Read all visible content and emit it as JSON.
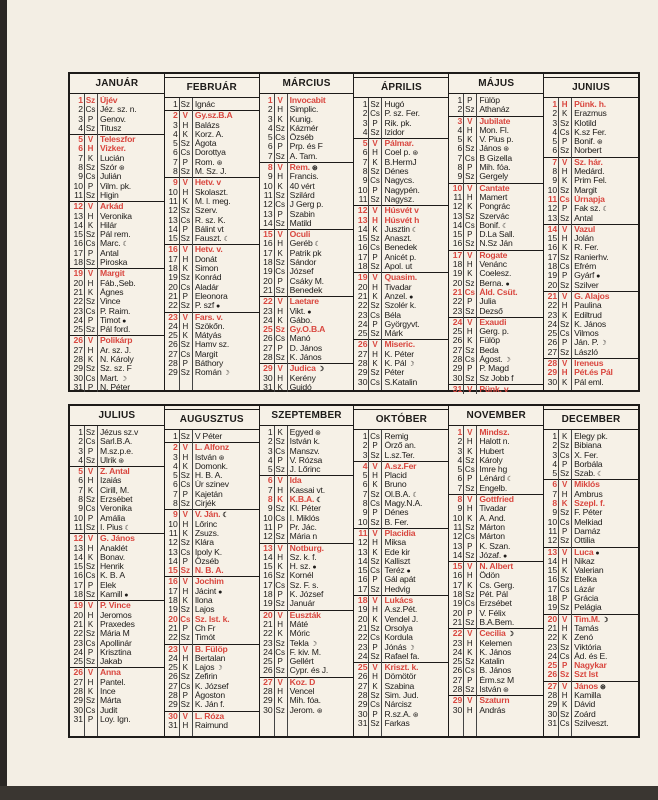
{
  "colors": {
    "holiday": "#d9473f",
    "ink": "#1d1b19",
    "paper": "#f6f1e7"
  },
  "moon_icons": {
    "f": "full-moon-face-icon",
    "n": "new-moon-icon",
    "l": "last-quarter-icon",
    "q": "first-quarter-icon"
  },
  "months": [
    {
      "name": "JANUÁR",
      "days": [
        "Sz|Újév|r",
        "Cs|Jéz. sz. n.",
        "P|Genov.",
        "Sz|Titusz",
        "V|Teleszfor|r",
        "H|Vizker.|r",
        "K|Lucián",
        "Sz|Szór|f",
        "Cs|Julián",
        "P|Vilm. pk.",
        "Sz|Higin",
        "V|Arkád|r",
        "H|Veronika",
        "K|Hilár",
        "Sz|Pál rem.",
        "Cs|Marc.|l",
        "P|Antal",
        "Sz|Piroska",
        "V|Margit|r",
        "H|Fáb.,Seb.",
        "K|Ágnes",
        "Sz|Vince",
        "Cs|P. Raim.",
        "P|Timot|n",
        "Sz|Pál ford.",
        "V|Polikárp|r",
        "H|Ar. sz. J.",
        "K|N. Károly",
        "Sz|Sz. sz. F",
        "Cs|Mart.|q",
        "P|N. Péter"
      ]
    },
    {
      "name": "FEBRUÁR",
      "days": [
        "Sz|Ignác",
        "V|Gy.sz.B.A|r",
        "H|Balázs",
        "K|Korz. A.",
        "Sz|Ágota",
        "Cs|Dorottya",
        "P|Rom.|f",
        "Sz|M. Sz. J.",
        "V|Hetv. v|r",
        "H|Skolaszt.",
        "K|M. l. meg.",
        "Sz|Szerv.",
        "Cs|R. sz. K.",
        "P|Bálint vt",
        "Sz|Fauszt.|l",
        "V|Hetv. v.|r",
        "H|Donát",
        "K|Simon",
        "Sz|Konrád",
        "Cs|Aladár",
        "P|Eleonora",
        "Sz|P. szf|n",
        "V|Fars. v.|r",
        "H|Szökőn.",
        "K|Mátyás",
        "Sz|Hamv sz.",
        "Cs|Margit",
        "P|Báthory",
        "Sz|Román|q"
      ]
    },
    {
      "name": "MÁRCIUS",
      "days": [
        "V|Invocabit|r",
        "H|Simplic.",
        "K|Kunig.",
        "Sz|Kázmér",
        "Cs|Özséb",
        "P|Prp. és F",
        "Sz|A. Tam.",
        "V|Rem.|rf",
        "H|Francis.",
        "K|40 vért",
        "Sz|Szilárd",
        "Cs|J Gerg p.",
        "P|Szabin",
        "Sz|Matild",
        "V|Oculi|r",
        "H|Geréb|l",
        "K|Patrik pk",
        "Sz|Sándor",
        "Cs|József",
        "P|Csáky M.",
        "Sz|Benedek",
        "V|Laetare|r",
        "H|Vikt.|n",
        "K|Gábo.",
        "Sz|Gy.O.B.A|r",
        "Cs|Manó",
        "P|D. János",
        "Sz|K. János",
        "V|Judica|rq",
        "H|Kerény",
        "K|Guidó"
      ]
    },
    {
      "name": "ÁPRILIS",
      "days": [
        "Sz|Hugó",
        "Cs|P. sz. Fer.",
        "P|Rik. pk.",
        "Sz|Izidor",
        "V|Pálmar.|r",
        "H|Coel p.|f",
        "K|B.HermJ",
        "Sz|Dénes",
        "Cs|Nagycs.",
        "P|Nagypén.",
        "Sz|Nagysz.",
        "V|Húsvét v|r",
        "H|Húsvét h|r",
        "K|Jusztin|l",
        "Sz|Anaszt.",
        "Cs|Benedek",
        "P|Anicét p.",
        "Sz|Apol. ut",
        "V|Quasim.|r",
        "H|Tivadar",
        "K|Anzel.|n",
        "Sz|Szolér k.",
        "Cs|Béla",
        "P|Györgyvt.",
        "Sz|Márk",
        "V|Miseric.|r",
        "H|K. Péter",
        "K|K. Pál|q",
        "Sz|Péter",
        "Cs|S.Katalin"
      ]
    },
    {
      "name": "MÁJUS",
      "days": [
        "P|Fülöp",
        "Sz|Athanáz",
        "V|Jubilate|r",
        "H|Mon. Fl.",
        "K|V. Pius p.",
        "Sz|János|f",
        "Cs|B Gizella",
        "P|Mih. fóa.",
        "Sz|Gergely",
        "V|Cantate|r",
        "H|Mamert",
        "K|Pongrác",
        "Sz|Szervác",
        "Cs|Bonif.|l",
        "P|D.La Sall.",
        "Sz|N.Sz Ján",
        "V|Rogate|r",
        "H|Venánc",
        "K|Coelesz.",
        "Sz|Berna.|n",
        "Cs|Áld. Csüt.|r",
        "P|Julia",
        "Sz|Dezső",
        "V|Exaudi|r",
        "H|Gerg. p.",
        "K|Fülöp",
        "Sz|Beda",
        "Cs|Ágost.|q",
        "P|P. Magd",
        "Sz|Sz Jobb f",
        "V|Pünk. v|r"
      ]
    },
    {
      "name": "JUNIUS",
      "days": [
        "H|Pünk. h.|r",
        "K|Erazmus",
        "Sz|Klotild",
        "Cs|K.sz Fer.",
        "P|Bonif.|f",
        "Sz|Norbert",
        "V|Sz. hár.|r",
        "H|Medárd.",
        "K|Prim Fel.",
        "Sz|Margit",
        "Cs|Úrnapja|r",
        "P|Fak sz.|l",
        "Sz|Antal",
        "V|Vazul|r",
        "H|Jolán",
        "K|R. Fer.",
        "Sz|Ranierhv.",
        "Cs|Efrém",
        "P|Gyárf|n",
        "Sz|Szilver",
        "V|G. Alajos|r",
        "H|Paulina",
        "K|Ediltrud",
        "Sz|K. János",
        "Cs|Vilmos",
        "P|Ján. P.|q",
        "Sz|László",
        "V|Ireneus|r",
        "H|Pét.és Pál|r",
        "K|Pál eml."
      ]
    },
    {
      "name": "JULIUS",
      "days": [
        "Sz|Jézus sz.v",
        "Cs|Sarl.B.A.",
        "P|M.sz.p.e.",
        "Sz|Ulrik|f",
        "V|Z. Antal|r",
        "H|Izaiás",
        "K|Cirill, M.",
        "Sz|Erzsébet",
        "Cs|Veronika",
        "P|Amália",
        "Sz|I. Pius|l",
        "V|G. János|r",
        "H|Anaklét",
        "K|Bonav.",
        "Sz|Henrik",
        "Cs|K. B. A",
        "P|Elek",
        "Sz|Kamill|n",
        "V|P. Vince|r",
        "H|Jeromos",
        "K|Praxedes",
        "Sz|Mária M",
        "Cs|Apollinár",
        "P|Krisztina",
        "Sz|Jakab",
        "V|Anna|r",
        "H|Pantel.",
        "K|Ince",
        "Sz|Márta",
        "Cs|Judit",
        "P|Loy. Ign."
      ]
    },
    {
      "name": "AUGUSZTUS",
      "days": [
        "Sz|V Péter",
        "V|L. Alfonz|r",
        "H|István|f",
        "K|Domonk.",
        "Sz|H. B. A.",
        "Cs|Úr szinev",
        "P|Kajetán",
        "Sz|Cirjék",
        "V|V. Ján.|rl",
        "H|Lőrinc",
        "K|Zsuzs.",
        "Sz|Klára",
        "Cs|Ipoly K.",
        "P|Özséb",
        "Sz|N. B. A.|r",
        "V|Jochim|r",
        "H|Jácint|n",
        "K|Ilona",
        "Sz|Lajos",
        "Cs|Sz. Ist. k.|r",
        "P|Ch Fr",
        "Sz|Timót",
        "V|B. Fülöp|r",
        "H|Bertalan",
        "K|Lajos|q",
        "Sz|Zefirin",
        "Cs|K. József",
        "P|Ágoston",
        "Sz|K. Ján f.",
        "V|L. Róza|r",
        "H|Raimund"
      ]
    },
    {
      "name": "SZEPTEMBER",
      "days": [
        "K|Egyed|f",
        "Sz|István k.",
        "Cs|Manszv.",
        "P|V. Rózsa",
        "Sz|J. Lőrinc",
        "V|Ida|r",
        "H|Kassai vt.",
        "K|K.B.A.|rl",
        "Sz|Kl. Péter",
        "Cs|I. Miklós",
        "P|Pr. Jác.",
        "Sz|Mária n",
        "V|Notburg.|r",
        "H|Sz. k. f.",
        "K|H. sz.|n",
        "Sz|Kornél",
        "Cs|Sz. F. s.",
        "P|K. József",
        "Sz|Január",
        "V|Euszták|r",
        "H|Máté",
        "K|Móric",
        "Sz|Tekla|q",
        "Cs|F. kiv. M.",
        "P|Gellért",
        "Sz|Cypr. és J.",
        "V|Koz. D|r",
        "H|Vencel",
        "K|Mih. fóa.",
        "Sz|Jerom.|f"
      ]
    },
    {
      "name": "OKTÓBER",
      "days": [
        "Cs|Remig",
        "P|Őrző an.",
        "Sz|L.sz.Ter.",
        "V|A.sz.Fer|r",
        "H|Placid",
        "K|Bruno",
        "Sz|Ol.B.A.|l",
        "Cs|Magy.N.A.",
        "P|Dénes",
        "Sz|B. Fer.",
        "V|Placidia|r",
        "H|Miksa",
        "K|Ede kir",
        "Sz|Kalliszt",
        "Cs|Teréz|n",
        "P|Gál apát",
        "Sz|Hedvig",
        "V|Lukács|r",
        "H|A.sz.Pét.",
        "K|Vendel J.",
        "Sz|Orsolya",
        "Cs|Kordula",
        "P|Jónás|q",
        "Sz|Rafael fa.",
        "V|Kriszt. k.|r",
        "H|Dömötör",
        "K|Szabina",
        "Sz|Sim. Jud.",
        "Cs|Nárcisz",
        "P|R.sz.A.|f",
        "Sz|Farkas"
      ]
    },
    {
      "name": "NOVEMBER",
      "days": [
        "V|Mindsz.|r",
        "H|Halott n.",
        "K|Hubert",
        "Sz|Károly",
        "Cs|Imre hg",
        "P|Lénárd|l",
        "Sz|Engelb.",
        "V|Gottfried|r",
        "H|Tivadar",
        "K|A. And.",
        "Sz|Márton",
        "Cs|Márton",
        "P|K. Szan.",
        "Sz|Józaf.|n",
        "V|N. Albert|r",
        "H|Ödön",
        "K|Cs. Gerg.",
        "Sz|Pét. Pál",
        "Cs|Erzsébet",
        "P|V. Félix",
        "Sz|B.A.Bem.",
        "V|Cecilia|rq",
        "H|Kelemen",
        "K|K. János",
        "Sz|Katalin",
        "Cs|B. János",
        "P|Érm.sz M",
        "Sz|István|f",
        "V|Szaturn|r",
        "H|András"
      ]
    },
    {
      "name": "DECEMBER",
      "days": [
        "K|Elegy pk.",
        "Sz|Bibiana",
        "Cs|X. Fer.",
        "P|Borbála",
        "Sz|Szab.|l",
        "V|Miklós|r",
        "H|Ambrus",
        "K|Szepl. f.|r",
        "Sz|F. Péter",
        "Cs|Melkiad",
        "P|Damáz",
        "Sz|Ottilia",
        "V|Luca|rn",
        "H|Nikaz",
        "K|Valerian",
        "Sz|Etelka",
        "Cs|Lázár",
        "P|Grácia",
        "Sz|Pelágia",
        "V|Tim.M.|rq",
        "H|Tamás",
        "K|Zenó",
        "Sz|Viktória",
        "Cs|Ád. és E.",
        "P|Nagykar|r",
        "Sz|Szt Ist|r",
        "V|János|rf",
        "H|Kamilla",
        "K|Dávid",
        "Sz|Zoárd",
        "Cs|Szilveszt."
      ]
    }
  ]
}
